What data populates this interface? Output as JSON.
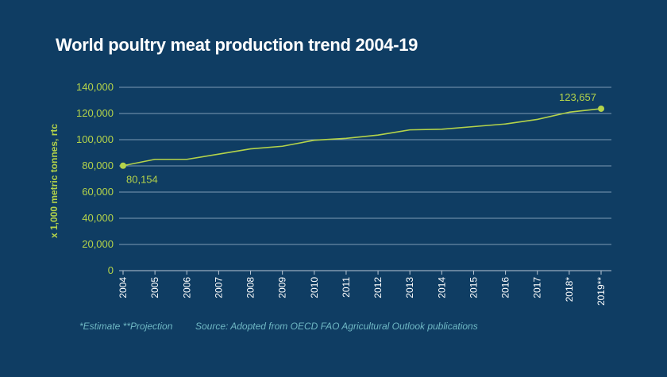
{
  "chart_data": {
    "type": "line",
    "title": "World poultry meat production trend 2004-19",
    "ylabel": "x 1,000 metric tonnes, rtc",
    "xlabel": "",
    "ylim": [
      0,
      140000
    ],
    "yticks": [
      "0",
      "20,000",
      "40,000",
      "60,000",
      "80,000",
      "100,000",
      "120,000",
      "140,000"
    ],
    "ytick_values": [
      0,
      20000,
      40000,
      60000,
      80000,
      100000,
      120000,
      140000
    ],
    "categories": [
      "2004",
      "2005",
      "2006",
      "2007",
      "2008",
      "2009",
      "2010",
      "2011",
      "2012",
      "2013",
      "2014",
      "2015",
      "2016",
      "2017",
      "2018*",
      "2019**"
    ],
    "series": [
      {
        "values": [
          80154,
          85000,
          85000,
          89000,
          93000,
          95000,
          99600,
          101000,
          103500,
          107500,
          108000,
          110000,
          112000,
          115500,
          121000,
          123657
        ]
      }
    ],
    "annotations": {
      "start_label": "80,154",
      "end_label": "123,657"
    },
    "grid": true,
    "line_color": "#b4d34a",
    "grid_color": "#7e9bb5",
    "label_color": "#b4d34a"
  },
  "footer": {
    "footnote": "*Estimate **Projection",
    "source": "Source: Adopted from OECD FAO Agricultural Outlook publications"
  },
  "colors": {
    "background": "#0f3d63",
    "title": "#ffffff",
    "footer": "#6fb8c4"
  }
}
